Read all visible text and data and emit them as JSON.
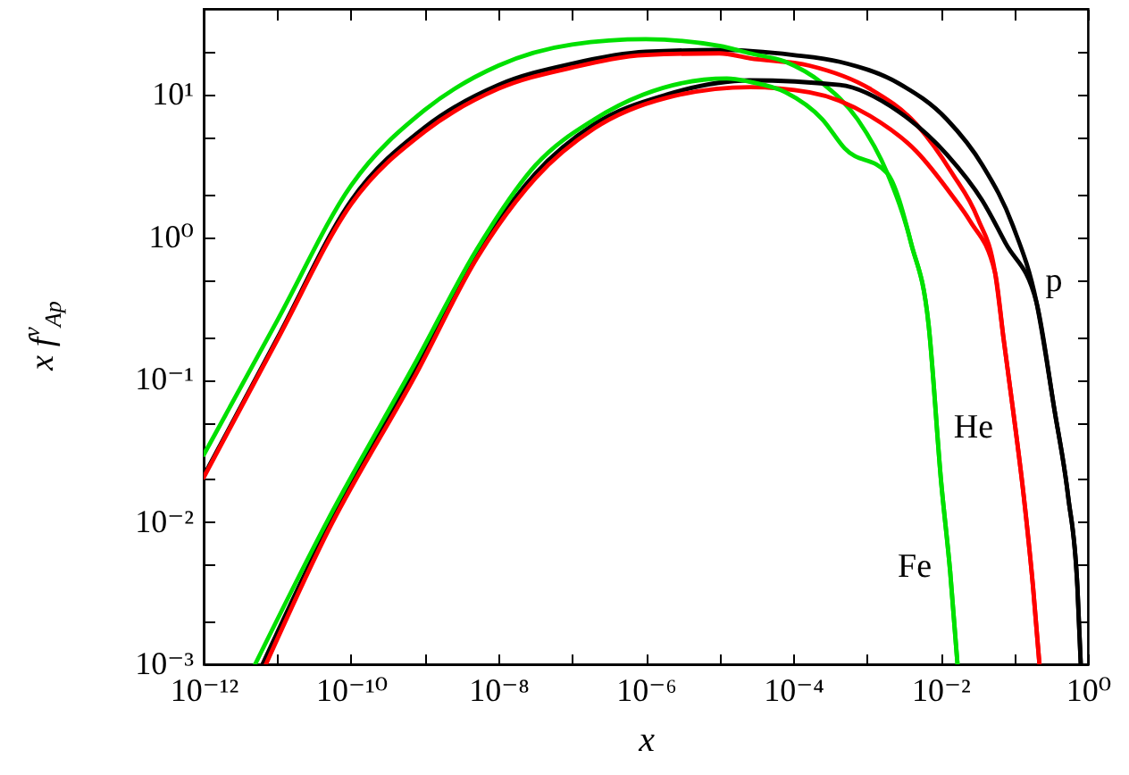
{
  "chart_data": {
    "type": "line",
    "xlabel": "x",
    "ylabel": "x f$^{ν}$$_{Ap}$",
    "log": "xy",
    "grid": false,
    "line_style": "solid",
    "marker": "none",
    "xlim": [
      1e-12,
      1
    ],
    "ylim": [
      0.001,
      40
    ],
    "xticks": [
      {
        "value": 1e-12,
        "label": "10⁻¹²"
      },
      {
        "value": 1e-11,
        "label": null
      },
      {
        "value": 1e-10,
        "label": "10⁻¹⁰"
      },
      {
        "value": 1e-09,
        "label": null
      },
      {
        "value": 1e-08,
        "label": "10⁻⁸"
      },
      {
        "value": 1e-07,
        "label": null
      },
      {
        "value": 1e-06,
        "label": "10⁻⁶"
      },
      {
        "value": 1e-05,
        "label": null
      },
      {
        "value": 0.0001,
        "label": "10⁻⁴"
      },
      {
        "value": 0.001,
        "label": null
      },
      {
        "value": 0.01,
        "label": "10⁻²"
      },
      {
        "value": 0.1,
        "label": null
      },
      {
        "value": 1,
        "label": "10⁰"
      }
    ],
    "yticks": [
      {
        "value": 0.001,
        "label": "10⁻³"
      },
      {
        "value": 0.002,
        "label": null
      },
      {
        "value": 0.005,
        "label": null
      },
      {
        "value": 0.01,
        "label": "10⁻²"
      },
      {
        "value": 0.02,
        "label": null
      },
      {
        "value": 0.05,
        "label": null
      },
      {
        "value": 0.1,
        "label": "10⁻¹"
      },
      {
        "value": 0.2,
        "label": null
      },
      {
        "value": 0.5,
        "label": null
      },
      {
        "value": 1,
        "label": "10⁰"
      },
      {
        "value": 2,
        "label": null
      },
      {
        "value": 5,
        "label": null
      },
      {
        "value": 10,
        "label": "10¹"
      },
      {
        "value": 20,
        "label": null
      }
    ],
    "series": [
      {
        "color": "#000000",
        "x": [
          1e-12,
          1e-11,
          1e-10,
          1e-09,
          1e-08,
          1e-07,
          1e-06,
          1e-05,
          0.0001,
          0.00043,
          0.0027,
          0.0122,
          0.037,
          0.096,
          0.2,
          0.35,
          0.54,
          0.72,
          0.8
        ],
        "values": [
          0.021,
          0.195,
          1.8,
          5.9,
          11.7,
          16.5,
          20,
          20.6,
          19,
          17,
          12,
          6.7,
          3.2,
          1.2,
          0.35,
          0.062,
          0.015,
          0.0035,
          0.001
        ]
      },
      {
        "color": "#ff0000",
        "x": [
          1e-12,
          1e-11,
          1e-10,
          1e-09,
          1e-08,
          1e-07,
          1e-06,
          1e-05,
          2.6e-05,
          0.000166,
          0.0011,
          0.0047,
          0.0144,
          0.032,
          0.055,
          0.072,
          0.096,
          0.135,
          0.18,
          0.22
        ],
        "values": [
          0.0205,
          0.19,
          1.7,
          5.5,
          11,
          15.5,
          19,
          19.5,
          18,
          16,
          11,
          6.2,
          2.8,
          1.35,
          0.56,
          0.19,
          0.062,
          0.015,
          0.0035,
          0.001
        ]
      },
      {
        "color": "#00e000",
        "x": [
          1e-12,
          1e-11,
          1e-10,
          1e-09,
          1e-08,
          1e-07,
          1e-06,
          1e-05,
          2.6e-05,
          7.9e-05,
          0.00025,
          0.00075,
          0.0019,
          0.004,
          0.0069,
          0.0102,
          0.0135,
          0.017
        ],
        "values": [
          0.0295,
          0.26,
          2.3,
          7.8,
          16,
          22.5,
          24.5,
          22,
          19.5,
          17,
          12,
          6.7,
          2.8,
          0.9,
          0.24,
          0.019,
          0.0045,
          0.001
        ]
      },
      {
        "color": "#000000",
        "x": [
          6.3e-12,
          4.7e-11,
          7.7e-10,
          5.1e-09,
          3.2e-08,
          2e-07,
          1.9e-06,
          2.6e-05,
          0.00043,
          0.0027,
          0.0122,
          0.037,
          0.077,
          0.2,
          0.35,
          0.54,
          0.72,
          0.8
        ],
        "values": [
          0.001,
          0.0089,
          0.12,
          0.76,
          2.8,
          6.2,
          10,
          12.6,
          11.7,
          7.6,
          3.8,
          1.8,
          0.9,
          0.35,
          0.062,
          0.015,
          0.0035,
          0.001
        ]
      },
      {
        "color": "#ff0000",
        "x": [
          7e-12,
          4.7e-11,
          7.7e-10,
          5.1e-09,
          3.2e-08,
          2e-07,
          1.9e-06,
          2.6e-05,
          0.000166,
          0.0011,
          0.0047,
          0.0144,
          0.025,
          0.055,
          0.072,
          0.096,
          0.135,
          0.18,
          0.22
        ],
        "values": [
          0.001,
          0.0083,
          0.11,
          0.71,
          2.6,
          5.8,
          9.5,
          11.3,
          10.4,
          7.1,
          4.0,
          1.95,
          1.3,
          0.56,
          0.19,
          0.062,
          0.015,
          0.0035,
          0.001
        ]
      },
      {
        "color": "#00e000",
        "x": [
          5e-12,
          4.7e-11,
          7.7e-10,
          5.1e-09,
          3.2e-08,
          2e-07,
          9.2e-07,
          1.26e-05,
          2.6e-05,
          7.9e-05,
          0.00025,
          0.0005,
          0.0019,
          0.004,
          0.0069,
          0.0102,
          0.0135,
          0.017
        ],
        "values": [
          0.001,
          0.01,
          0.135,
          0.82,
          3.2,
          6.7,
          10,
          13,
          12.3,
          10.4,
          6.7,
          4.2,
          2.8,
          0.9,
          0.24,
          0.019,
          0.0045,
          0.001
        ]
      }
    ],
    "annotations": [
      "p",
      "He",
      "Fe"
    ]
  }
}
